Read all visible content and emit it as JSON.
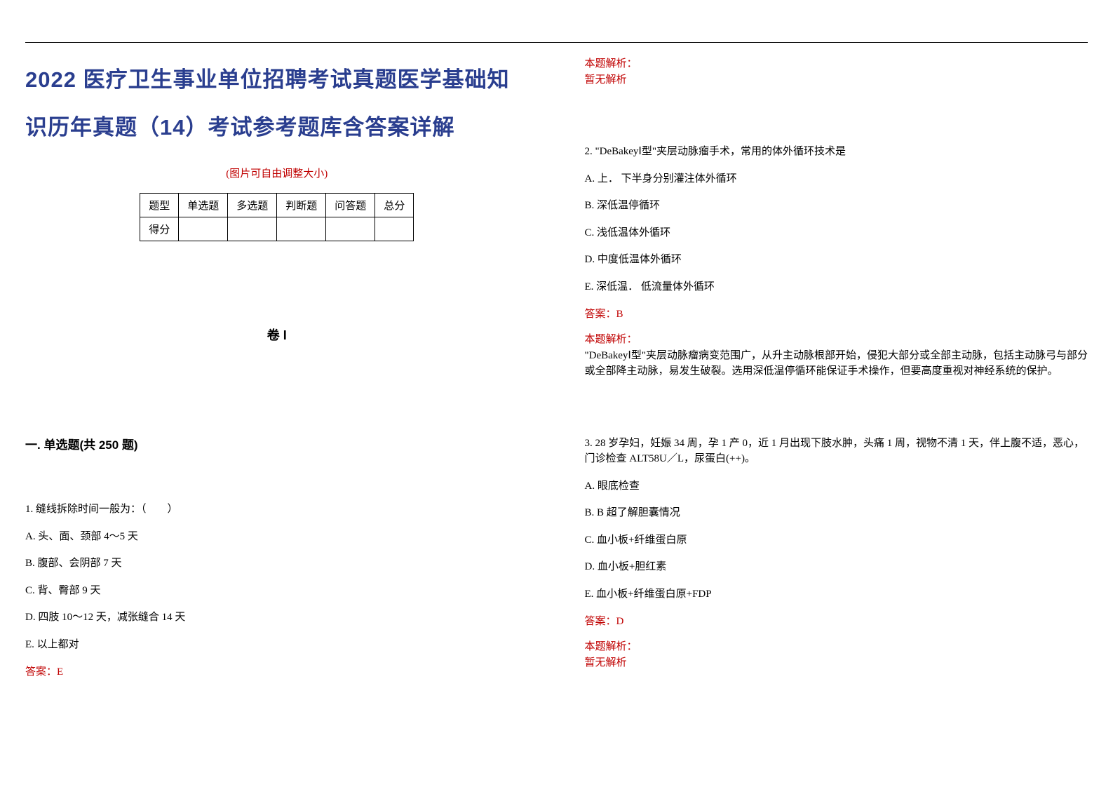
{
  "title": "2022 医疗卫生事业单位招聘考试真题医学基础知识历年真题（14）考试参考题库含答案详解",
  "adjustNote": "(图片可自由调整大小)",
  "scoreTable": {
    "headers": [
      "题型",
      "单选题",
      "多选题",
      "判断题",
      "问答题",
      "总分"
    ],
    "rowLabel": "得分"
  },
  "volumeMark": "卷 I",
  "sectionTitle": "一. 单选题(共 250 题)",
  "leftQuestion": {
    "number": "1.",
    "stem": " 缝线拆除时间一般为：（　　）",
    "options": [
      "A. 头、面、颈部 4～5 天",
      "B. 腹部、会阴部 7 天",
      "C. 背、臀部 9 天",
      "D. 四肢 10～12 天，减张缝合 14 天",
      "E. 以上都对"
    ],
    "answerLabel": "答案：E"
  },
  "rightTop": {
    "explainLabel": "本题解析：",
    "explainContent": "暂无解析"
  },
  "question2": {
    "stem": "2. \"DeBakeyⅠ型\"夹层动脉瘤手术，常用的体外循环技术是",
    "options": [
      "A. 上． 下半身分别灌注体外循环",
      "B. 深低温停循环",
      "C. 浅低温体外循环",
      "D. 中度低温体外循环",
      "E. 深低温． 低流量体外循环"
    ],
    "answerLabel": "答案：B",
    "explainLabel": "本题解析：",
    "explainContent": "\"DeBakeyⅠ型\"夹层动脉瘤病变范围广，从升主动脉根部开始，侵犯大部分或全部主动脉，包括主动脉弓与部分或全部降主动脉，易发生破裂。选用深低温停循环能保证手术操作，但要高度重视对神经系统的保护。"
  },
  "question3": {
    "stem": "3. 28 岁孕妇，妊娠 34 周，孕 1 产 0，近 1 月出现下肢水肿，头痛 1 周，视物不清 1 天，伴上腹不适，恶心，门诊检查 ALT58U／L，尿蛋白(++)。",
    "options": [
      "A. 眼底检查",
      "B. B 超了解胆囊情况",
      "C. 血小板+纤维蛋白原",
      "D. 血小板+胆红素",
      "E. 血小板+纤维蛋白原+FDP"
    ],
    "answerLabel": "答案：D",
    "explainLabel": "本题解析：",
    "explainContent": "暂无解析"
  },
  "colors": {
    "titleColor": "#2a3e8f",
    "redColor": "#c00000",
    "textColor": "#000000",
    "backgroundColor": "#ffffff",
    "borderColor": "#000000"
  },
  "typography": {
    "titleFont": "SimHei",
    "bodyFont": "SimSun",
    "titleSize": 31,
    "bodySize": 15,
    "sectionTitleSize": 17,
    "volumeMarkSize": 18
  },
  "layout": {
    "pageWidth": 1587,
    "pageHeight": 1122,
    "columns": 2,
    "topRuleOffset": 60
  }
}
